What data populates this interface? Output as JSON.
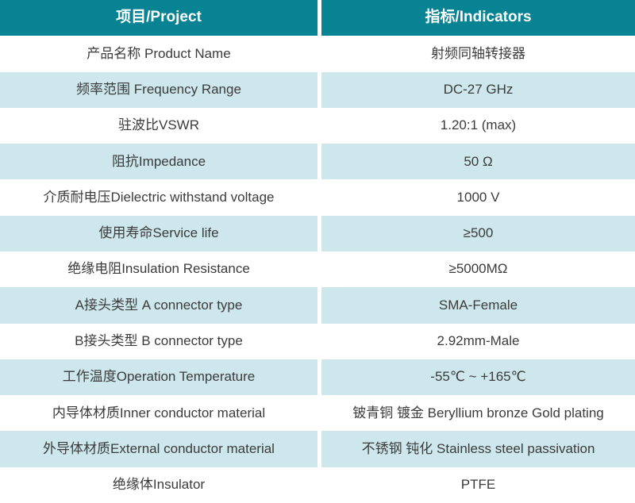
{
  "colors": {
    "header_bg": "#088394",
    "header_text": "#ffffff",
    "row_white_bg": "#ffffff",
    "row_alt_bg": "#cde7ec",
    "body_text": "#3b3b3b"
  },
  "table": {
    "header": {
      "project": "项目/Project",
      "indicators": "指标/Indicators"
    },
    "rows": [
      {
        "project": "产品名称 Product Name",
        "indicator": "射频同轴转接器"
      },
      {
        "project": "频率范围 Frequency Range",
        "indicator": "DC-27 GHz"
      },
      {
        "project": "驻波比VSWR",
        "indicator": "1.20:1 (max)"
      },
      {
        "project": "阻抗Impedance",
        "indicator": "50 Ω"
      },
      {
        "project": "介质耐电压Dielectric withstand voltage",
        "indicator": "1000 V"
      },
      {
        "project": "使用寿命Service life",
        "indicator": "≥500"
      },
      {
        "project": "绝缘电阻Insulation Resistance",
        "indicator": "≥5000MΩ"
      },
      {
        "project": "A接头类型 A connector type",
        "indicator": "SMA-Female"
      },
      {
        "project": "B接头类型 B connector type",
        "indicator": "2.92mm-Male"
      },
      {
        "project": "工作温度Operation Temperature",
        "indicator": "-55℃ ~ +165℃"
      },
      {
        "project": "内导体材质Inner conductor material",
        "indicator": "铍青铜 镀金 Beryllium bronze Gold plating"
      },
      {
        "project": "外导体材质External conductor material",
        "indicator": "不锈钢 钝化 Stainless steel passivation"
      },
      {
        "project": "绝缘体Insulator",
        "indicator": "PTFE"
      }
    ]
  }
}
